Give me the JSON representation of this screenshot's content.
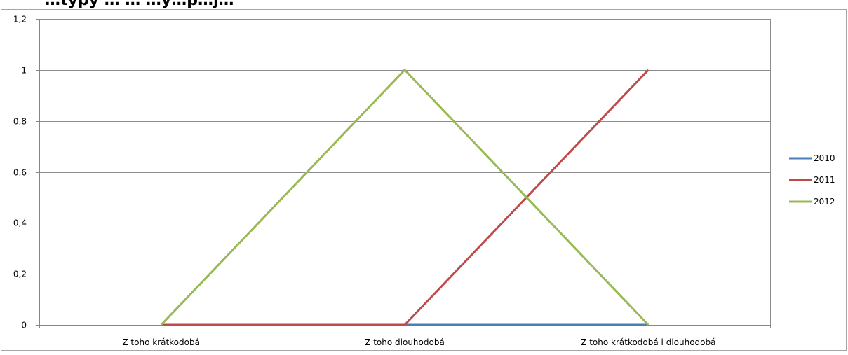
{
  "chart_data": {
    "type": "line",
    "title": "…typy … … …y…p…j…",
    "categories": [
      "Z toho krátkodobá",
      "Z toho dlouhodobá",
      "Z toho krátkodobá i dlouhodobá"
    ],
    "series": [
      {
        "name": "2010",
        "color": "#4a7ebb",
        "values": [
          null,
          0,
          0
        ]
      },
      {
        "name": "2011",
        "color": "#be4b48",
        "values": [
          0,
          0,
          1
        ]
      },
      {
        "name": "2012",
        "color": "#98b954",
        "values": [
          0,
          1,
          0
        ]
      }
    ],
    "ylim": [
      0,
      1.2
    ],
    "yticks": [
      0,
      0.2,
      0.4,
      0.6,
      0.8,
      1,
      1.2
    ],
    "ytick_labels": [
      "0",
      "0,2",
      "0,4",
      "0,6",
      "0,8",
      "1",
      "1,2"
    ],
    "grid": true,
    "legend_position": "right",
    "xlabel": "",
    "ylabel": ""
  }
}
